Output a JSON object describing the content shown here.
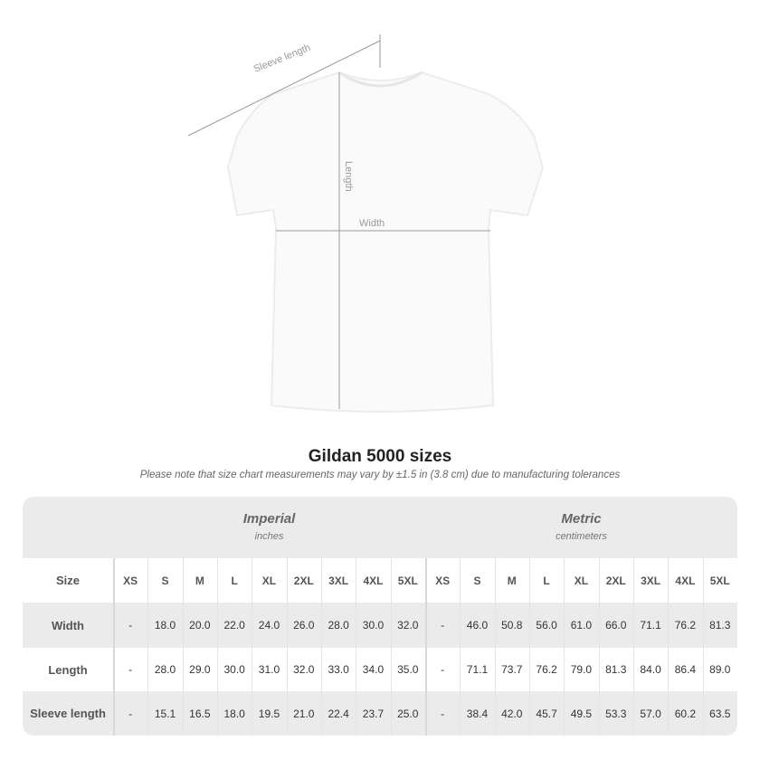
{
  "diagram": {
    "sleeve_label": "Sleeve length",
    "length_label": "Length",
    "width_label": "Width"
  },
  "title": "Gildan 5000 sizes",
  "subtitle": "Please note that size chart measurements may vary by ±1.5 in (3.8 cm) due to manufacturing tolerances",
  "imperial": {
    "name": "Imperial",
    "unit": "inches"
  },
  "metric": {
    "name": "Metric",
    "unit": "centimeters"
  },
  "size_label": "Size",
  "sizes": [
    "XS",
    "S",
    "M",
    "L",
    "XL",
    "2XL",
    "3XL",
    "4XL",
    "5XL"
  ],
  "rows": [
    {
      "label": "Width",
      "imperial": [
        "-",
        "18.0",
        "20.0",
        "22.0",
        "24.0",
        "26.0",
        "28.0",
        "30.0",
        "32.0"
      ],
      "metric": [
        "-",
        "46.0",
        "50.8",
        "56.0",
        "61.0",
        "66.0",
        "71.1",
        "76.2",
        "81.3"
      ]
    },
    {
      "label": "Length",
      "imperial": [
        "-",
        "28.0",
        "29.0",
        "30.0",
        "31.0",
        "32.0",
        "33.0",
        "34.0",
        "35.0"
      ],
      "metric": [
        "-",
        "71.1",
        "73.7",
        "76.2",
        "79.0",
        "81.3",
        "84.0",
        "86.4",
        "89.0"
      ]
    },
    {
      "label": "Sleeve length",
      "imperial": [
        "-",
        "15.1",
        "16.5",
        "18.0",
        "19.5",
        "21.0",
        "22.4",
        "23.7",
        "25.0"
      ],
      "metric": [
        "-",
        "38.4",
        "42.0",
        "45.7",
        "49.5",
        "53.3",
        "57.0",
        "60.2",
        "63.5"
      ]
    }
  ],
  "colors": {
    "band": "#ebebeb",
    "shirt": "#ffffff",
    "measure_line": "#999999"
  }
}
